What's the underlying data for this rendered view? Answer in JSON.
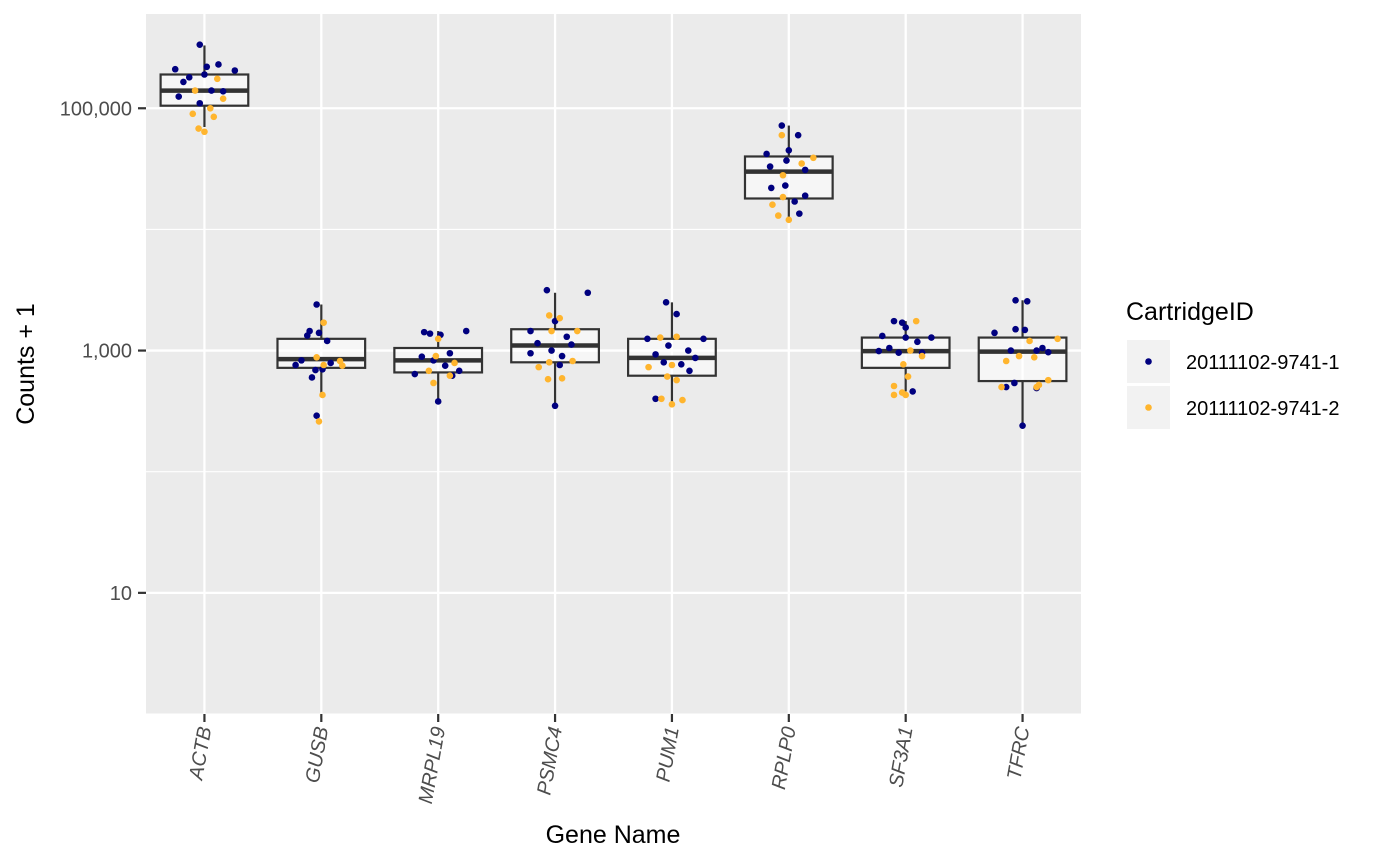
{
  "chart_data": {
    "type": "box",
    "xlabel": "Gene Name",
    "ylabel": "Counts + 1",
    "yscale": "log10",
    "ylim": [
      1,
      600000
    ],
    "yticks": [
      {
        "value": 10,
        "label": "10"
      },
      {
        "value": 1000,
        "label": "1,000"
      },
      {
        "value": 100000,
        "label": "100,000"
      }
    ],
    "categories": [
      "ACTB",
      "GUSB",
      "MRPL19",
      "PSMC4",
      "PUM1",
      "RPLP0",
      "SF3A1",
      "TFRC"
    ],
    "grid": true,
    "legend": {
      "title": "CartridgeID",
      "placement": "right",
      "entries": [
        {
          "label": "20111102-9741-1",
          "color": "#00007f"
        },
        {
          "label": "20111102-9741-2",
          "color": "#ffb52e"
        }
      ]
    },
    "boxes": [
      {
        "gene": "ACTB",
        "q1": 105000,
        "median": 140000,
        "q3": 190000,
        "whisker_low": 70000,
        "whisker_high": 330000
      },
      {
        "gene": "GUSB",
        "q1": 720,
        "median": 850,
        "q3": 1250,
        "whisker_low": 450,
        "whisker_high": 2400
      },
      {
        "gene": "MRPL19",
        "q1": 660,
        "median": 830,
        "q3": 1050,
        "whisker_low": 380,
        "whisker_high": 1450
      },
      {
        "gene": "PSMC4",
        "q1": 800,
        "median": 1100,
        "q3": 1500,
        "whisker_low": 350,
        "whisker_high": 3000
      },
      {
        "gene": "PUM1",
        "q1": 620,
        "median": 870,
        "q3": 1250,
        "whisker_low": 370,
        "whisker_high": 2500
      },
      {
        "gene": "RPLP0",
        "q1": 18000,
        "median": 30000,
        "q3": 40000,
        "whisker_low": 12000,
        "whisker_high": 72000
      },
      {
        "gene": "SF3A1",
        "q1": 720,
        "median": 990,
        "q3": 1280,
        "whisker_low": 460,
        "whisker_high": 1750
      },
      {
        "gene": "TFRC",
        "q1": 560,
        "median": 980,
        "q3": 1280,
        "whisker_low": 240,
        "whisker_high": 2600
      }
    ],
    "series": [
      {
        "name": "20111102-9741-1",
        "color": "#00007f",
        "points": [
          {
            "gene": "ACTB",
            "y": 335000,
            "jitter": -0.04
          },
          {
            "gene": "ACTB",
            "y": 230000,
            "jitter": 0.12
          },
          {
            "gene": "ACTB",
            "y": 220000,
            "jitter": 0.02
          },
          {
            "gene": "ACTB",
            "y": 210000,
            "jitter": -0.25
          },
          {
            "gene": "ACTB",
            "y": 205000,
            "jitter": 0.26
          },
          {
            "gene": "ACTB",
            "y": 190000,
            "jitter": 0.0
          },
          {
            "gene": "ACTB",
            "y": 180000,
            "jitter": -0.13
          },
          {
            "gene": "ACTB",
            "y": 165000,
            "jitter": -0.18
          },
          {
            "gene": "ACTB",
            "y": 140000,
            "jitter": 0.06
          },
          {
            "gene": "ACTB",
            "y": 138000,
            "jitter": 0.16
          },
          {
            "gene": "ACTB",
            "y": 125000,
            "jitter": -0.22
          },
          {
            "gene": "ACTB",
            "y": 110000,
            "jitter": -0.04
          },
          {
            "gene": "GUSB",
            "y": 2400,
            "jitter": -0.04
          },
          {
            "gene": "GUSB",
            "y": 1450,
            "jitter": -0.1
          },
          {
            "gene": "GUSB",
            "y": 1400,
            "jitter": -0.02
          },
          {
            "gene": "GUSB",
            "y": 1330,
            "jitter": -0.12
          },
          {
            "gene": "GUSB",
            "y": 1200,
            "jitter": 0.05
          },
          {
            "gene": "GUSB",
            "y": 830,
            "jitter": -0.17
          },
          {
            "gene": "GUSB",
            "y": 790,
            "jitter": 0.08
          },
          {
            "gene": "GUSB",
            "y": 760,
            "jitter": -0.22
          },
          {
            "gene": "GUSB",
            "y": 700,
            "jitter": 0.01
          },
          {
            "gene": "GUSB",
            "y": 690,
            "jitter": -0.05
          },
          {
            "gene": "GUSB",
            "y": 600,
            "jitter": -0.08
          },
          {
            "gene": "GUSB",
            "y": 290,
            "jitter": -0.04
          },
          {
            "gene": "MRPL19",
            "y": 1450,
            "jitter": 0.24
          },
          {
            "gene": "MRPL19",
            "y": 1420,
            "jitter": -0.12
          },
          {
            "gene": "MRPL19",
            "y": 1380,
            "jitter": -0.07
          },
          {
            "gene": "MRPL19",
            "y": 1350,
            "jitter": 0.02
          },
          {
            "gene": "MRPL19",
            "y": 950,
            "jitter": 0.1
          },
          {
            "gene": "MRPL19",
            "y": 890,
            "jitter": -0.14
          },
          {
            "gene": "MRPL19",
            "y": 830,
            "jitter": -0.04
          },
          {
            "gene": "MRPL19",
            "y": 750,
            "jitter": 0.06
          },
          {
            "gene": "MRPL19",
            "y": 680,
            "jitter": 0.18
          },
          {
            "gene": "MRPL19",
            "y": 640,
            "jitter": -0.2
          },
          {
            "gene": "MRPL19",
            "y": 620,
            "jitter": 0.12
          },
          {
            "gene": "MRPL19",
            "y": 380,
            "jitter": 0.0
          },
          {
            "gene": "PSMC4",
            "y": 3000,
            "jitter": 0.28
          },
          {
            "gene": "PSMC4",
            "y": 3150,
            "jitter": -0.07
          },
          {
            "gene": "PSMC4",
            "y": 1750,
            "jitter": 0.0
          },
          {
            "gene": "PSMC4",
            "y": 1450,
            "jitter": -0.21
          },
          {
            "gene": "PSMC4",
            "y": 1300,
            "jitter": 0.1
          },
          {
            "gene": "PSMC4",
            "y": 1150,
            "jitter": -0.15
          },
          {
            "gene": "PSMC4",
            "y": 1120,
            "jitter": 0.14
          },
          {
            "gene": "PSMC4",
            "y": 1000,
            "jitter": -0.03
          },
          {
            "gene": "PSMC4",
            "y": 950,
            "jitter": -0.21
          },
          {
            "gene": "PSMC4",
            "y": 900,
            "jitter": 0.06
          },
          {
            "gene": "PSMC4",
            "y": 760,
            "jitter": 0.04
          },
          {
            "gene": "PSMC4",
            "y": 350,
            "jitter": 0.0
          },
          {
            "gene": "PUM1",
            "y": 2500,
            "jitter": -0.05
          },
          {
            "gene": "PUM1",
            "y": 2000,
            "jitter": 0.04
          },
          {
            "gene": "PUM1",
            "y": 1250,
            "jitter": -0.21
          },
          {
            "gene": "PUM1",
            "y": 1250,
            "jitter": 0.27
          },
          {
            "gene": "PUM1",
            "y": 1100,
            "jitter": -0.03
          },
          {
            "gene": "PUM1",
            "y": 1000,
            "jitter": 0.14
          },
          {
            "gene": "PUM1",
            "y": 930,
            "jitter": -0.14
          },
          {
            "gene": "PUM1",
            "y": 870,
            "jitter": 0.2
          },
          {
            "gene": "PUM1",
            "y": 800,
            "jitter": -0.07
          },
          {
            "gene": "PUM1",
            "y": 770,
            "jitter": 0.08
          },
          {
            "gene": "PUM1",
            "y": 680,
            "jitter": 0.15
          },
          {
            "gene": "PUM1",
            "y": 400,
            "jitter": -0.14
          },
          {
            "gene": "RPLP0",
            "y": 72000,
            "jitter": -0.06
          },
          {
            "gene": "RPLP0",
            "y": 60000,
            "jitter": 0.08
          },
          {
            "gene": "RPLP0",
            "y": 45000,
            "jitter": 0.0
          },
          {
            "gene": "RPLP0",
            "y": 42000,
            "jitter": -0.19
          },
          {
            "gene": "RPLP0",
            "y": 37000,
            "jitter": -0.02
          },
          {
            "gene": "RPLP0",
            "y": 33000,
            "jitter": -0.16
          },
          {
            "gene": "RPLP0",
            "y": 31000,
            "jitter": 0.14
          },
          {
            "gene": "RPLP0",
            "y": 23000,
            "jitter": -0.03
          },
          {
            "gene": "RPLP0",
            "y": 22000,
            "jitter": -0.15
          },
          {
            "gene": "RPLP0",
            "y": 19000,
            "jitter": 0.14
          },
          {
            "gene": "RPLP0",
            "y": 17000,
            "jitter": 0.05
          },
          {
            "gene": "RPLP0",
            "y": 13500,
            "jitter": 0.09
          },
          {
            "gene": "SF3A1",
            "y": 1750,
            "jitter": -0.1
          },
          {
            "gene": "SF3A1",
            "y": 1700,
            "jitter": -0.03
          },
          {
            "gene": "SF3A1",
            "y": 1550,
            "jitter": 0.0
          },
          {
            "gene": "SF3A1",
            "y": 1320,
            "jitter": -0.2
          },
          {
            "gene": "SF3A1",
            "y": 1280,
            "jitter": 0.22
          },
          {
            "gene": "SF3A1",
            "y": 1280,
            "jitter": 0.0
          },
          {
            "gene": "SF3A1",
            "y": 1180,
            "jitter": 0.1
          },
          {
            "gene": "SF3A1",
            "y": 1050,
            "jitter": -0.14
          },
          {
            "gene": "SF3A1",
            "y": 990,
            "jitter": -0.23
          },
          {
            "gene": "SF3A1",
            "y": 960,
            "jitter": -0.06
          },
          {
            "gene": "SF3A1",
            "y": 960,
            "jitter": 0.14
          },
          {
            "gene": "SF3A1",
            "y": 460,
            "jitter": 0.06
          },
          {
            "gene": "TFRC",
            "y": 2600,
            "jitter": -0.06
          },
          {
            "gene": "TFRC",
            "y": 2550,
            "jitter": 0.04
          },
          {
            "gene": "TFRC",
            "y": 1500,
            "jitter": -0.06
          },
          {
            "gene": "TFRC",
            "y": 1480,
            "jitter": 0.02
          },
          {
            "gene": "TFRC",
            "y": 1400,
            "jitter": -0.24
          },
          {
            "gene": "TFRC",
            "y": 1050,
            "jitter": 0.17
          },
          {
            "gene": "TFRC",
            "y": 1000,
            "jitter": -0.1
          },
          {
            "gene": "TFRC",
            "y": 1000,
            "jitter": 0.12
          },
          {
            "gene": "TFRC",
            "y": 970,
            "jitter": 0.22
          },
          {
            "gene": "TFRC",
            "y": 540,
            "jitter": -0.07
          },
          {
            "gene": "TFRC",
            "y": 500,
            "jitter": -0.14
          },
          {
            "gene": "TFRC",
            "y": 490,
            "jitter": 0.12
          },
          {
            "gene": "TFRC",
            "y": 240,
            "jitter": 0.0
          }
        ]
      },
      {
        "name": "20111102-9741-2",
        "color": "#ffb52e",
        "points": [
          {
            "gene": "ACTB",
            "y": 175000,
            "jitter": 0.11
          },
          {
            "gene": "ACTB",
            "y": 140000,
            "jitter": -0.08
          },
          {
            "gene": "ACTB",
            "y": 120000,
            "jitter": 0.16
          },
          {
            "gene": "ACTB",
            "y": 100000,
            "jitter": 0.05
          },
          {
            "gene": "ACTB",
            "y": 90000,
            "jitter": -0.1
          },
          {
            "gene": "ACTB",
            "y": 85000,
            "jitter": 0.08
          },
          {
            "gene": "ACTB",
            "y": 68000,
            "jitter": -0.05
          },
          {
            "gene": "ACTB",
            "y": 64000,
            "jitter": 0.0
          },
          {
            "gene": "GUSB",
            "y": 1700,
            "jitter": 0.02
          },
          {
            "gene": "GUSB",
            "y": 880,
            "jitter": -0.04
          },
          {
            "gene": "GUSB",
            "y": 820,
            "jitter": 0.16
          },
          {
            "gene": "GUSB",
            "y": 760,
            "jitter": 0.02
          },
          {
            "gene": "GUSB",
            "y": 750,
            "jitter": 0.18
          },
          {
            "gene": "GUSB",
            "y": 430,
            "jitter": 0.01
          },
          {
            "gene": "GUSB",
            "y": 260,
            "jitter": -0.02
          },
          {
            "gene": "MRPL19",
            "y": 1250,
            "jitter": 0.0
          },
          {
            "gene": "MRPL19",
            "y": 900,
            "jitter": -0.02
          },
          {
            "gene": "MRPL19",
            "y": 790,
            "jitter": 0.14
          },
          {
            "gene": "MRPL19",
            "y": 680,
            "jitter": -0.08
          },
          {
            "gene": "MRPL19",
            "y": 620,
            "jitter": 0.1
          },
          {
            "gene": "MRPL19",
            "y": 540,
            "jitter": -0.04
          },
          {
            "gene": "PSMC4",
            "y": 1950,
            "jitter": -0.05
          },
          {
            "gene": "PSMC4",
            "y": 1850,
            "jitter": 0.04
          },
          {
            "gene": "PSMC4",
            "y": 1450,
            "jitter": -0.03
          },
          {
            "gene": "PSMC4",
            "y": 1450,
            "jitter": 0.19
          },
          {
            "gene": "PSMC4",
            "y": 820,
            "jitter": 0.15
          },
          {
            "gene": "PSMC4",
            "y": 800,
            "jitter": -0.05
          },
          {
            "gene": "PSMC4",
            "y": 730,
            "jitter": -0.14
          },
          {
            "gene": "PSMC4",
            "y": 590,
            "jitter": 0.06
          },
          {
            "gene": "PSMC4",
            "y": 580,
            "jitter": -0.06
          },
          {
            "gene": "PUM1",
            "y": 1300,
            "jitter": 0.04
          },
          {
            "gene": "PUM1",
            "y": 1280,
            "jitter": -0.1
          },
          {
            "gene": "PUM1",
            "y": 760,
            "jitter": 0.0
          },
          {
            "gene": "PUM1",
            "y": 730,
            "jitter": -0.2
          },
          {
            "gene": "PUM1",
            "y": 610,
            "jitter": -0.04
          },
          {
            "gene": "PUM1",
            "y": 570,
            "jitter": 0.04
          },
          {
            "gene": "PUM1",
            "y": 400,
            "jitter": -0.09
          },
          {
            "gene": "PUM1",
            "y": 390,
            "jitter": 0.09
          },
          {
            "gene": "PUM1",
            "y": 360,
            "jitter": 0.0
          },
          {
            "gene": "RPLP0",
            "y": 60000,
            "jitter": -0.06
          },
          {
            "gene": "RPLP0",
            "y": 39000,
            "jitter": 0.21
          },
          {
            "gene": "RPLP0",
            "y": 35000,
            "jitter": 0.11
          },
          {
            "gene": "RPLP0",
            "y": 28000,
            "jitter": -0.05
          },
          {
            "gene": "RPLP0",
            "y": 18500,
            "jitter": -0.05
          },
          {
            "gene": "RPLP0",
            "y": 16000,
            "jitter": -0.14
          },
          {
            "gene": "RPLP0",
            "y": 13000,
            "jitter": -0.09
          },
          {
            "gene": "RPLP0",
            "y": 12000,
            "jitter": 0.0
          },
          {
            "gene": "SF3A1",
            "y": 1750,
            "jitter": 0.09
          },
          {
            "gene": "SF3A1",
            "y": 1000,
            "jitter": 0.04
          },
          {
            "gene": "SF3A1",
            "y": 900,
            "jitter": 0.14
          },
          {
            "gene": "SF3A1",
            "y": 770,
            "jitter": -0.02
          },
          {
            "gene": "SF3A1",
            "y": 610,
            "jitter": 0.02
          },
          {
            "gene": "SF3A1",
            "y": 510,
            "jitter": -0.1
          },
          {
            "gene": "SF3A1",
            "y": 450,
            "jitter": -0.03
          },
          {
            "gene": "SF3A1",
            "y": 430,
            "jitter": -0.1
          },
          {
            "gene": "SF3A1",
            "y": 430,
            "jitter": 0.0
          },
          {
            "gene": "TFRC",
            "y": 1250,
            "jitter": 0.3
          },
          {
            "gene": "TFRC",
            "y": 1200,
            "jitter": 0.06
          },
          {
            "gene": "TFRC",
            "y": 900,
            "jitter": -0.03
          },
          {
            "gene": "TFRC",
            "y": 880,
            "jitter": 0.1
          },
          {
            "gene": "TFRC",
            "y": 820,
            "jitter": -0.14
          },
          {
            "gene": "TFRC",
            "y": 570,
            "jitter": 0.22
          },
          {
            "gene": "TFRC",
            "y": 520,
            "jitter": 0.14
          },
          {
            "gene": "TFRC",
            "y": 500,
            "jitter": -0.18
          },
          {
            "gene": "TFRC",
            "y": 500,
            "jitter": 0.12
          }
        ]
      }
    ]
  }
}
